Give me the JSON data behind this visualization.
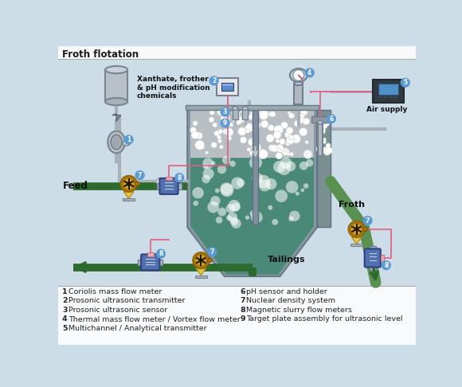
{
  "title": "Froth flotation",
  "bg_color": "#ccdde8",
  "title_color": "#1a1a1a",
  "legend_items_left": [
    [
      "1",
      "Coriolis mass flow meter"
    ],
    [
      "2",
      "Prosonic ultrasonic transmitter"
    ],
    [
      "3",
      "Prosonic ultrasonic sensor"
    ],
    [
      "4",
      "Thermal mass flow meter / Vortex flow meter"
    ],
    [
      "5",
      "Multichannel / Analytical transmitter"
    ]
  ],
  "legend_items_right": [
    [
      "6",
      "pH sensor and holder"
    ],
    [
      "7",
      "Nuclear density system"
    ],
    [
      "8",
      "Magnetic slurry flow meters"
    ],
    [
      "9",
      "Target plate assembly for ultrasonic level"
    ]
  ],
  "label_feed": "Feed",
  "label_froth": "Froth",
  "label_tailings": "Tailings",
  "label_air": "Air supply",
  "label_chemicals": "Xanthate, frother\n& pH modification\nchemicals",
  "pipe_color": "#2d6a2d",
  "circle_color": "#5b9bd5",
  "circle_text_color": "#ffffff",
  "pink_line": "#e06080",
  "separator_color": "#aaaaaa",
  "device_yellow": "#d4a020",
  "device_blue": "#5070b0",
  "pipe_gray": "#a8b0b8"
}
